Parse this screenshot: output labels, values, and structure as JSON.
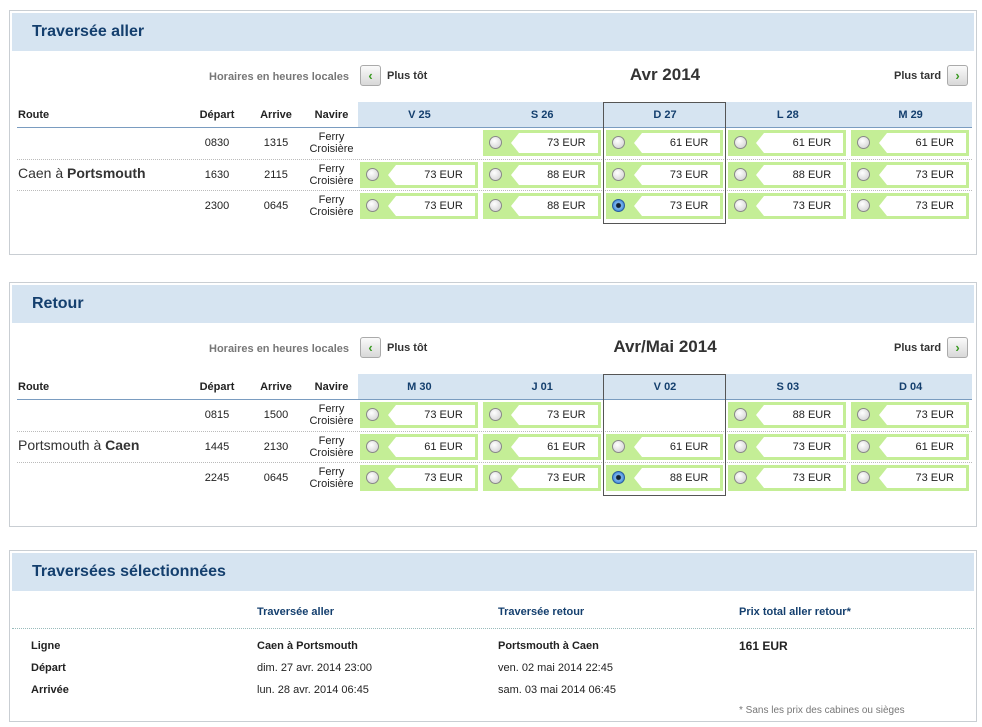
{
  "sections": [
    {
      "title": "Traversée aller",
      "local_label": "Horaires en heures locales",
      "earlier_label": "Plus tôt",
      "later_label": "Plus tard",
      "month": "Avr 2014",
      "headers": {
        "route": "Route",
        "depart": "Départ",
        "arrive": "Arrive",
        "ship": "Navire"
      },
      "route_from": "Caen à ",
      "route_to": "Portsmouth",
      "days": [
        "V 25",
        "S 26",
        "D 27",
        "L 28",
        "M 29"
      ],
      "selected_day": 2,
      "rows": [
        {
          "depart": "0830",
          "arrive": "1315",
          "ship": "Ferry Croisière",
          "fares": [
            null,
            "73 EUR",
            "61 EUR",
            "61 EUR",
            "61 EUR"
          ],
          "selected": null
        },
        {
          "depart": "1630",
          "arrive": "2115",
          "ship": "Ferry Croisière",
          "fares": [
            "73 EUR",
            "88 EUR",
            "73 EUR",
            "88 EUR",
            "73 EUR"
          ],
          "selected": null
        },
        {
          "depart": "2300",
          "arrive": "0645",
          "ship": "Ferry Croisière",
          "fares": [
            "73 EUR",
            "88 EUR",
            "73 EUR",
            "73 EUR",
            "73 EUR"
          ],
          "selected": 2
        }
      ]
    },
    {
      "title": "Retour",
      "local_label": "Horaires en heures locales",
      "earlier_label": "Plus tôt",
      "later_label": "Plus tard",
      "month": "Avr/Mai 2014",
      "headers": {
        "route": "Route",
        "depart": "Départ",
        "arrive": "Arrive",
        "ship": "Navire"
      },
      "route_from": "Portsmouth à ",
      "route_to": "Caen",
      "days": [
        "M 30",
        "J 01",
        "V 02",
        "S 03",
        "D 04"
      ],
      "selected_day": 2,
      "rows": [
        {
          "depart": "0815",
          "arrive": "1500",
          "ship": "Ferry Croisière",
          "fares": [
            "73 EUR",
            "73 EUR",
            null,
            "88 EUR",
            "73 EUR"
          ],
          "selected": null
        },
        {
          "depart": "1445",
          "arrive": "2130",
          "ship": "Ferry Croisière",
          "fares": [
            "61 EUR",
            "61 EUR",
            "61 EUR",
            "73 EUR",
            "61 EUR"
          ],
          "selected": null
        },
        {
          "depart": "2245",
          "arrive": "0645",
          "ship": "Ferry Croisière",
          "fares": [
            "73 EUR",
            "73 EUR",
            "88 EUR",
            "73 EUR",
            "73 EUR"
          ],
          "selected": 2
        }
      ]
    }
  ],
  "summary": {
    "title": "Traversées sélectionnées",
    "col_out": "Traversée aller",
    "col_ret": "Traversée retour",
    "col_total": "Prix total aller retour*",
    "labels": [
      "Ligne",
      "Départ",
      "Arrivée"
    ],
    "out": [
      "Caen à Portsmouth",
      "dim. 27 avr. 2014 23:00",
      "lun. 28 avr. 2014 06:45"
    ],
    "ret": [
      "Portsmouth à Caen",
      "ven. 02 mai 2014 22:45",
      "sam. 03 mai 2014 06:45"
    ],
    "total": "161 EUR",
    "note": "* Sans les prix des cabines ou sièges"
  },
  "colors": {
    "header_bg": "#d6e4f1",
    "fare_green": "#c4ee96",
    "title_blue": "#143f6e"
  }
}
